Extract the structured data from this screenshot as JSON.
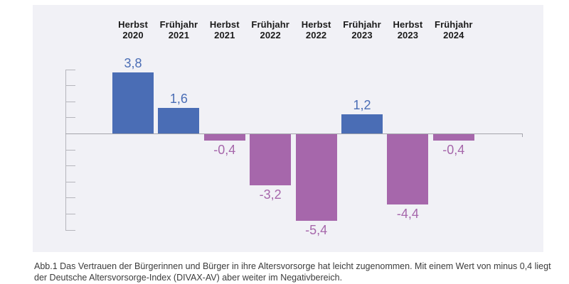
{
  "figure": {
    "caption_lines": [
      "Abb.1 Das Vertrauen der Bürgerinnen und Bürger in ihre Altersvorsorge hat leicht zugenommen. Mit einem Wert von minus 0,4 liegt",
      "der Deutsche Altersvorsorge-Index (DIVAX-AV) aber weiter im Negativbereich."
    ]
  },
  "chart_data": {
    "type": "bar",
    "title": "",
    "xlabel": "",
    "ylabel": "",
    "categories": [
      [
        "Herbst",
        "2020"
      ],
      [
        "Frühjahr",
        "2021"
      ],
      [
        "Herbst",
        "2021"
      ],
      [
        "Frühjahr",
        "2022"
      ],
      [
        "Herbst",
        "2022"
      ],
      [
        "Frühjahr",
        "2023"
      ],
      [
        "Herbst",
        "2023"
      ],
      [
        "Frühjahr",
        "2024"
      ]
    ],
    "values": [
      3.8,
      1.6,
      -0.4,
      -3.2,
      -5.4,
      1.2,
      -4.4,
      -0.4
    ],
    "value_labels": [
      "3,8",
      "1,6",
      "-0,4",
      "-3,2",
      "-5,4",
      "1,2",
      "-4,4",
      "-0,4"
    ],
    "ylim": [
      -6,
      4
    ],
    "tick_step": 1,
    "grid": false,
    "legend": false,
    "y_tick_labels_visible": false,
    "colors": {
      "positive": "#4a6db5",
      "negative": "#a667ab"
    },
    "axis_color": "#b6b6bc",
    "zero_line_color": "#a4a4ac",
    "category_label_color": "#1b1b1b",
    "panel_background": "#f1f1f6"
  }
}
